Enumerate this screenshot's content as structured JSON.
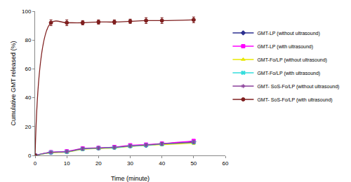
{
  "chart_data": {
    "type": "line",
    "x_label": "Time (minute)",
    "y_label": "Cumulative GMT released (%)",
    "xlim": [
      0,
      60
    ],
    "xticks": [
      0,
      10,
      20,
      30,
      40,
      50,
      60
    ],
    "ylim": [
      0,
      100
    ],
    "yticks": [
      0,
      20,
      40,
      60,
      80,
      100
    ],
    "grid": false,
    "legend": "right",
    "line_style": "smooth",
    "x": [
      0,
      5,
      10,
      15,
      20,
      25,
      30,
      35,
      40,
      50
    ],
    "series": [
      {
        "name": "GMT-LP (without ultrasound)",
        "color": "#2b2f8f",
        "marker": "diamond",
        "values": [
          0,
          2,
          2.5,
          4.5,
          5,
          5.5,
          6.5,
          7,
          8,
          9.5
        ],
        "error": [
          0,
          0.5,
          0.8,
          1,
          0.8,
          0.8,
          0.8,
          0.8,
          1,
          1
        ]
      },
      {
        "name": "GMT-LP (with ultrasound)",
        "color": "#ff00ff",
        "marker": "square",
        "values": [
          0,
          2.2,
          2.8,
          4.8,
          5.2,
          5.8,
          7,
          7.5,
          8.2,
          10
        ],
        "error": [
          0,
          0.5,
          0.8,
          1,
          0.8,
          0.8,
          0.8,
          0.8,
          1,
          1
        ]
      },
      {
        "name": "GMT-Fo/LP (without ultrasound)",
        "color": "#e8e800",
        "marker": "triangle",
        "values": [
          0,
          1.8,
          2.2,
          4.2,
          4.8,
          5.2,
          6.2,
          6.8,
          7.5,
          8.5
        ],
        "error": [
          0,
          0.5,
          0.8,
          1,
          0.8,
          0.8,
          0.8,
          0.8,
          1,
          1
        ]
      },
      {
        "name": "GMT-Fo/LP (with ultrasound)",
        "color": "#33dddd",
        "marker": "x",
        "values": [
          0,
          2,
          2.4,
          4.4,
          5,
          5.4,
          6.4,
          7,
          7.8,
          9
        ],
        "error": [
          0,
          0.5,
          0.8,
          1,
          0.8,
          0.8,
          0.8,
          0.8,
          1,
          1
        ]
      },
      {
        "name": "GMT- SoS-Fo/LP (without ultrasound)",
        "color": "#8a3f9a",
        "marker": "asterisk",
        "values": [
          0,
          2.1,
          2.6,
          4.6,
          5.1,
          5.6,
          6.6,
          7.2,
          8,
          9.2
        ],
        "error": [
          0,
          0.5,
          0.8,
          1,
          0.8,
          0.8,
          0.8,
          0.8,
          1,
          1
        ]
      },
      {
        "name": "GMT- SoS-Fo/LP (with ultrasound)",
        "color": "#7f1f1f",
        "marker": "circle",
        "values": [
          0,
          92,
          92,
          92,
          92.5,
          92.5,
          93,
          93.5,
          93.5,
          94
        ],
        "error": [
          0,
          2,
          2,
          1.5,
          1.5,
          1.5,
          1.5,
          2,
          2,
          2
        ]
      }
    ]
  }
}
